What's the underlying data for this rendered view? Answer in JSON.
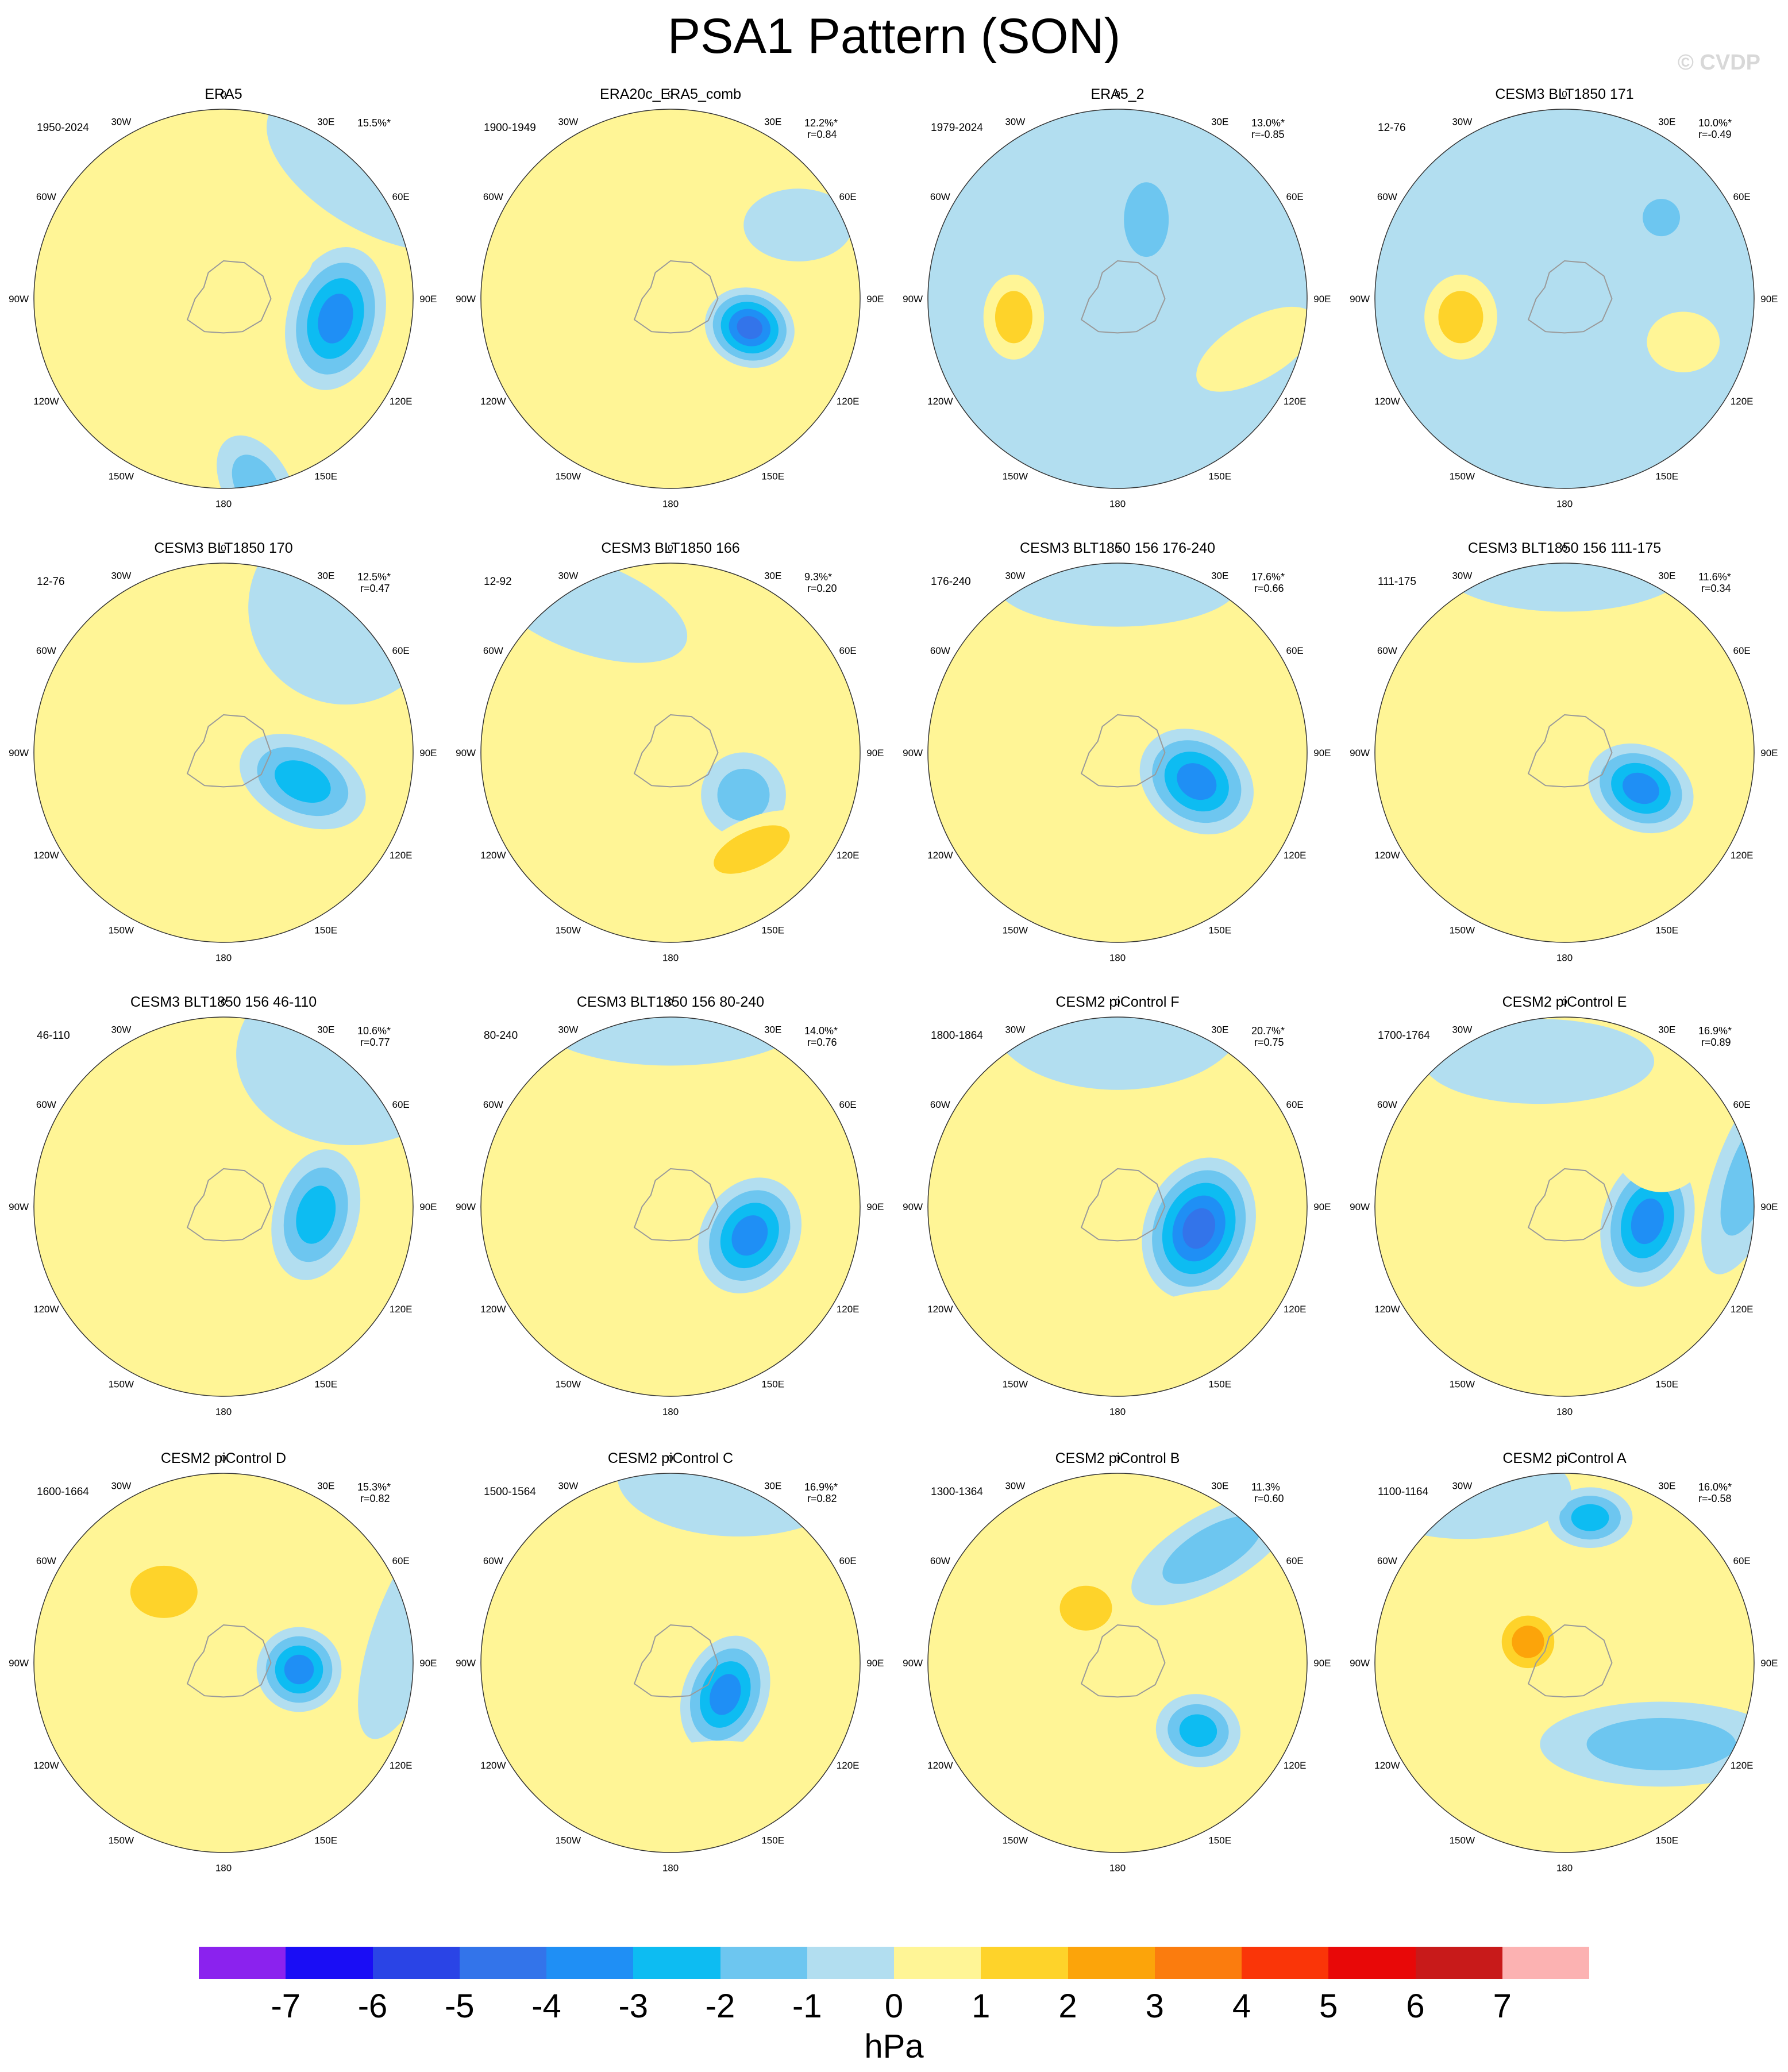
{
  "title": "PSA1 Pattern (SON)",
  "watermark": "© CVDP",
  "units": "hPa",
  "lon_labels": [
    "0",
    "30E",
    "60E",
    "90E",
    "120E",
    "150E",
    "180",
    "150W",
    "120W",
    "90W",
    "60W",
    "30W"
  ],
  "colorbar": {
    "ticks": [
      "-7",
      "-6",
      "-5",
      "-4",
      "-3",
      "-2",
      "-1",
      "0",
      "1",
      "2",
      "3",
      "4",
      "5",
      "6",
      "7"
    ],
    "colors": [
      "#8b22ee",
      "#1a0df5",
      "#2a44e6",
      "#3374ea",
      "#1f8ff5",
      "#0dbcf2",
      "#6dc6f0",
      "#b2def0",
      "#fff596",
      "#fed32a",
      "#fca40a",
      "#fb7c0e",
      "#fa3508",
      "#e80808",
      "#c81a1a",
      "#fcb2b2"
    ]
  },
  "map_colors": {
    "land": "#9a9a9a",
    "circle": "#333333"
  },
  "panels": [
    {
      "title": "ERA5",
      "period": "1950-2024",
      "stats": "15.5%*",
      "base": "#fff596",
      "blobs": [
        {
          "lon": 100,
          "lat": -63,
          "rx": 0.16,
          "ry": 0.24,
          "rot": 15,
          "level": -4
        },
        {
          "lon": 170,
          "lat": -45,
          "rx": 0.18,
          "ry": 0.11,
          "rot": 60,
          "level": -2
        },
        {
          "lon": 45,
          "lat": -75,
          "rx": 0.15,
          "ry": 0.12,
          "rot": 0,
          "level": 1
        },
        {
          "lon": 330,
          "lat": -70,
          "rx": 0.08,
          "ry": 0.06,
          "rot": 0,
          "level": 1
        },
        {
          "lon": 50,
          "lat": -40,
          "rx": 0.4,
          "ry": 0.2,
          "rot": 30,
          "level": -1
        }
      ]
    },
    {
      "title": "ERA20c_ERA5_comb",
      "period": "1900-1949",
      "stats": "12.2%*\n r=0.84",
      "base": "#fff596",
      "blobs": [
        {
          "lon": 110,
          "lat": -70,
          "rx": 0.15,
          "ry": 0.13,
          "rot": 20,
          "level": -5
        },
        {
          "lon": 130,
          "lat": -50,
          "rx": 0.35,
          "ry": 0.12,
          "rot": -20,
          "level": 1
        },
        {
          "lon": 20,
          "lat": -70,
          "rx": 0.2,
          "ry": 0.1,
          "rot": 0,
          "level": 1
        },
        {
          "lon": 60,
          "lat": -55,
          "rx": 0.18,
          "ry": 0.12,
          "rot": 0,
          "level": -1
        }
      ]
    },
    {
      "title": "ERA5_2",
      "period": "1979-2024",
      "stats": "13.0%*\nr=-0.85",
      "base": "#b2def0",
      "blobs": [
        {
          "lon": 260,
          "lat": -65,
          "rx": 0.1,
          "ry": 0.14,
          "rot": 0,
          "level": 2
        },
        {
          "lon": 110,
          "lat": -55,
          "rx": 0.22,
          "ry": 0.1,
          "rot": -30,
          "level": 1
        },
        {
          "lon": 20,
          "lat": -70,
          "rx": 0.12,
          "ry": 0.2,
          "rot": 0,
          "level": -2
        }
      ]
    },
    {
      "title": "CESM3 BLT1850 171",
      "period": "12-76",
      "stats": "10.0%*\nr=-0.49",
      "base": "#b2def0",
      "blobs": [
        {
          "lon": 260,
          "lat": -65,
          "rx": 0.12,
          "ry": 0.14,
          "rot": 0,
          "level": 2
        },
        {
          "lon": 110,
          "lat": -60,
          "rx": 0.12,
          "ry": 0.1,
          "rot": 0,
          "level": 1
        },
        {
          "lon": 50,
          "lat": -60,
          "rx": 0.1,
          "ry": 0.1,
          "rot": 0,
          "level": -2
        }
      ]
    },
    {
      "title": "CESM3 BLT1850 170",
      "period": "12-76",
      "stats": "12.5%*\n r=0.47",
      "base": "#fff596",
      "blobs": [
        {
          "lon": 110,
          "lat": -70,
          "rx": 0.22,
          "ry": 0.14,
          "rot": 25,
          "level": -3
        },
        {
          "lon": 40,
          "lat": -45,
          "rx": 0.32,
          "ry": 0.32,
          "rot": 0,
          "level": -1
        }
      ]
    },
    {
      "title": "CESM3 BLT1850 166",
      "period": "12-92",
      "stats": "9.3%*\n r=0.20",
      "base": "#fff596",
      "blobs": [
        {
          "lon": 120,
          "lat": -70,
          "rx": 0.14,
          "ry": 0.14,
          "rot": 0,
          "level": -2
        },
        {
          "lon": 140,
          "lat": -60,
          "rx": 0.22,
          "ry": 0.1,
          "rot": -25,
          "level": 2
        },
        {
          "lon": 330,
          "lat": -50,
          "rx": 0.35,
          "ry": 0.15,
          "rot": 20,
          "level": -1
        }
      ]
    },
    {
      "title": "CESM3 BLT1850 156 176-240",
      "period": "176-240",
      "stats": "17.6%*\n r=0.66",
      "base": "#fff596",
      "blobs": [
        {
          "lon": 110,
          "lat": -70,
          "rx": 0.2,
          "ry": 0.16,
          "rot": 35,
          "level": -4
        },
        {
          "lon": 160,
          "lat": -50,
          "rx": 0.32,
          "ry": 0.12,
          "rot": -15,
          "level": 1
        },
        {
          "lon": 0,
          "lat": -50,
          "rx": 0.4,
          "ry": 0.14,
          "rot": 0,
          "level": -1
        }
      ]
    },
    {
      "title": "CESM3 BLT1850 156 111-175",
      "period": "111-175",
      "stats": "11.6%*\n r=0.34",
      "base": "#fff596",
      "blobs": [
        {
          "lon": 115,
          "lat": -70,
          "rx": 0.18,
          "ry": 0.14,
          "rot": 25,
          "level": -4
        },
        {
          "lon": 170,
          "lat": -45,
          "rx": 0.3,
          "ry": 0.12,
          "rot": -20,
          "level": 1
        },
        {
          "lon": 0,
          "lat": -45,
          "rx": 0.42,
          "ry": 0.16,
          "rot": 0,
          "level": -1
        }
      ]
    },
    {
      "title": "CESM3 BLT1850 156 46-110",
      "period": "46-110",
      "stats": "10.6%*\n r=0.77",
      "base": "#fff596",
      "blobs": [
        {
          "lon": 95,
          "lat": -68,
          "rx": 0.14,
          "ry": 0.22,
          "rot": 15,
          "level": -3
        },
        {
          "lon": 40,
          "lat": -40,
          "rx": 0.38,
          "ry": 0.3,
          "rot": 0,
          "level": -1
        }
      ]
    },
    {
      "title": "CESM3 BLT1850 156 80-240",
      "period": "80-240",
      "stats": "14.0%*\n r=0.76",
      "base": "#fff596",
      "blobs": [
        {
          "lon": 110,
          "lat": -70,
          "rx": 0.16,
          "ry": 0.2,
          "rot": 30,
          "level": -4
        },
        {
          "lon": 150,
          "lat": -50,
          "rx": 0.34,
          "ry": 0.12,
          "rot": -20,
          "level": 1
        },
        {
          "lon": 0,
          "lat": -45,
          "rx": 0.45,
          "ry": 0.16,
          "rot": 0,
          "level": -1
        }
      ]
    },
    {
      "title": "CESM2 piControl F",
      "period": "1800-1864",
      "stats": "20.7%*\n r=0.75",
      "base": "#fff596",
      "blobs": [
        {
          "lon": 105,
          "lat": -70,
          "rx": 0.18,
          "ry": 0.24,
          "rot": 20,
          "level": -5
        },
        {
          "lon": 150,
          "lat": -50,
          "rx": 0.4,
          "ry": 0.2,
          "rot": -10,
          "level": 1
        },
        {
          "lon": 0,
          "lat": -45,
          "rx": 0.42,
          "ry": 0.24,
          "rot": 0,
          "level": -1
        }
      ]
    },
    {
      "title": "CESM2 piControl E",
      "period": "1700-1764",
      "stats": "16.9%*\n r=0.89",
      "base": "#fff596",
      "blobs": [
        {
          "lon": 100,
          "lat": -70,
          "rx": 0.15,
          "ry": 0.22,
          "rot": 15,
          "level": -4
        },
        {
          "lon": 50,
          "lat": -60,
          "rx": 0.18,
          "ry": 0.22,
          "rot": 0,
          "level": 1
        },
        {
          "lon": 80,
          "lat": -45,
          "rx": 0.12,
          "ry": 0.35,
          "rot": 20,
          "level": -2
        },
        {
          "lon": 350,
          "lat": -55,
          "rx": 0.38,
          "ry": 0.14,
          "rot": 0,
          "level": -1
        }
      ]
    },
    {
      "title": "CESM2 piControl D",
      "period": "1600-1664",
      "stats": "15.3%*\n r=0.82",
      "base": "#fff596",
      "blobs": [
        {
          "lon": 95,
          "lat": -72,
          "rx": 0.14,
          "ry": 0.14,
          "rot": 0,
          "level": -4
        },
        {
          "lon": 320,
          "lat": -68,
          "rx": 0.18,
          "ry": 0.14,
          "rot": 0,
          "level": 2
        },
        {
          "lon": 80,
          "lat": -45,
          "rx": 0.12,
          "ry": 0.38,
          "rot": 20,
          "level": -1
        }
      ]
    },
    {
      "title": "CESM2 piControl C",
      "period": "1500-1564",
      "stats": "16.9%*\n r=0.82",
      "base": "#fff596",
      "blobs": [
        {
          "lon": 120,
          "lat": -75,
          "rx": 0.14,
          "ry": 0.2,
          "rot": 20,
          "level": -4
        },
        {
          "lon": 160,
          "lat": -55,
          "rx": 0.4,
          "ry": 0.2,
          "rot": 0,
          "level": 1
        },
        {
          "lon": 20,
          "lat": -40,
          "rx": 0.4,
          "ry": 0.2,
          "rot": 0,
          "level": -1
        }
      ]
    },
    {
      "title": "CESM2 piControl B",
      "period": "1300-1364",
      "stats": "11.3%\n r=0.60",
      "base": "#fff596",
      "blobs": [
        {
          "lon": 130,
          "lat": -65,
          "rx": 0.14,
          "ry": 0.12,
          "rot": 10,
          "level": -3
        },
        {
          "lon": 330,
          "lat": -75,
          "rx": 0.14,
          "ry": 0.12,
          "rot": 0,
          "level": 2
        },
        {
          "lon": 40,
          "lat": -55,
          "rx": 0.3,
          "ry": 0.12,
          "rot": -30,
          "level": -2
        }
      ]
    },
    {
      "title": "CESM2 piControl A",
      "period": "1100-1164",
      "stats": "16.0%*\nr=-0.58",
      "base": "#fff596",
      "blobs": [
        {
          "lon": 300,
          "lat": -80,
          "rx": 0.12,
          "ry": 0.12,
          "rot": 0,
          "level": 3
        },
        {
          "lon": 10,
          "lat": -55,
          "rx": 0.14,
          "ry": 0.1,
          "rot": 0,
          "level": -3
        },
        {
          "lon": 130,
          "lat": -60,
          "rx": 0.4,
          "ry": 0.14,
          "rot": 0,
          "level": -2
        },
        {
          "lon": 330,
          "lat": -40,
          "rx": 0.35,
          "ry": 0.16,
          "rot": 0,
          "level": -1
        }
      ]
    }
  ]
}
